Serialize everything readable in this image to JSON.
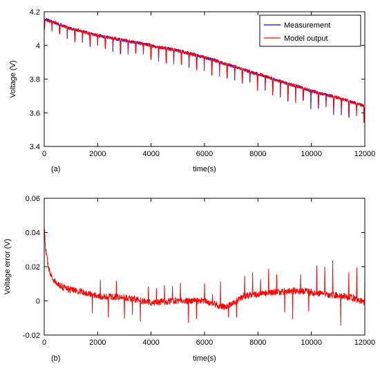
{
  "chart_data": [
    {
      "type": "line",
      "panel_label": "(a)",
      "xlabel": "time(s)",
      "ylabel": "Voltage (V)",
      "xlim": [
        0,
        12000
      ],
      "ylim": [
        3.4,
        4.2
      ],
      "xticks": [
        0,
        2000,
        4000,
        6000,
        8000,
        10000,
        12000
      ],
      "yticks": [
        3.4,
        3.6,
        3.8,
        4,
        4.2
      ],
      "grid": false,
      "legend_position": "top-right",
      "series": [
        {
          "name": "Measurement",
          "color": "#0000ff",
          "x": [
            0,
            300,
            1000,
            2000,
            3000,
            4000,
            5000,
            6000,
            7000,
            8000,
            9000,
            10000,
            11000,
            12000
          ],
          "values": [
            4.16,
            4.14,
            4.1,
            4.06,
            4.03,
            4.0,
            3.97,
            3.93,
            3.88,
            3.83,
            3.78,
            3.73,
            3.69,
            3.64
          ]
        },
        {
          "name": "Model output",
          "color": "#ff0000",
          "x": [
            0,
            300,
            1000,
            2000,
            3000,
            4000,
            5000,
            6000,
            7000,
            8000,
            9000,
            10000,
            11000,
            12000
          ],
          "values": [
            4.15,
            4.14,
            4.1,
            4.06,
            4.03,
            4.0,
            3.97,
            3.93,
            3.88,
            3.83,
            3.78,
            3.73,
            3.69,
            3.64
          ]
        }
      ]
    },
    {
      "type": "line",
      "panel_label": "(b)",
      "xlabel": "time(s)",
      "ylabel": "Voltage error (V)",
      "xlim": [
        0,
        12000
      ],
      "ylim": [
        -0.02,
        0.06
      ],
      "xticks": [
        0,
        2000,
        4000,
        6000,
        8000,
        10000,
        12000
      ],
      "yticks": [
        -0.02,
        0,
        0.02,
        0.04,
        0.06
      ],
      "ytick_labels": [
        "-0.02",
        "0",
        "0.02",
        "0.04",
        "0.06"
      ],
      "grid": false,
      "series": [
        {
          "color": "#ff0000",
          "x": [
            0,
            50,
            150,
            300,
            500,
            800,
            1200,
            2000,
            3000,
            4000,
            5000,
            6000,
            6800,
            7500,
            8500,
            9600,
            10500,
            11500,
            12000
          ],
          "values": [
            0.043,
            0.03,
            0.02,
            0.013,
            0.01,
            0.007,
            0.006,
            0.003,
            0.002,
            -0.001,
            0.0,
            0.0,
            -0.004,
            0.003,
            0.005,
            0.006,
            0.004,
            0.002,
            -0.001
          ]
        }
      ]
    }
  ]
}
